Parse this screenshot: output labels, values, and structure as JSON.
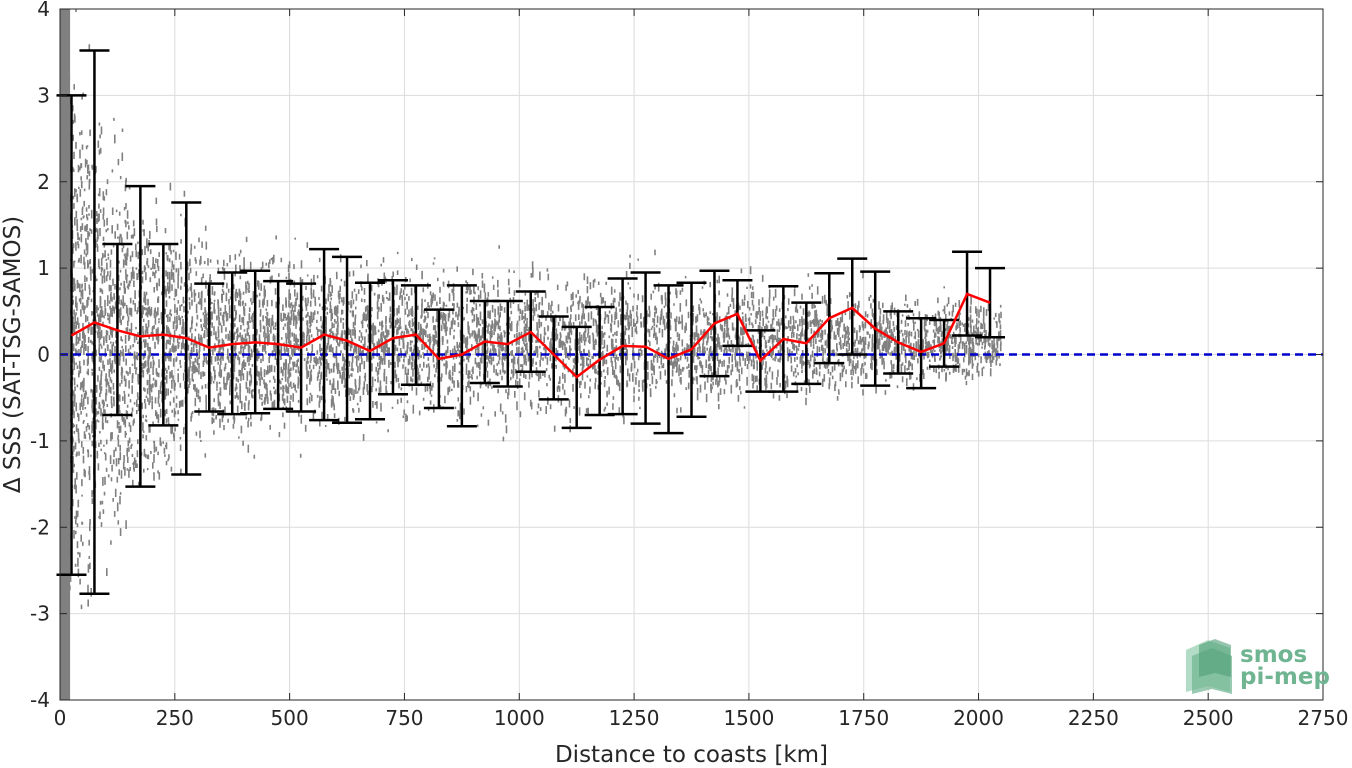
{
  "chart_data": {
    "type": "scatter",
    "title": "",
    "xlabel": "Distance to coasts [km]",
    "ylabel": "Δ SSS (SAT-TSG-SAMOS)",
    "xlim": [
      0,
      2750
    ],
    "ylim": [
      -4,
      4
    ],
    "xticks": [
      0,
      250,
      500,
      750,
      1000,
      1250,
      1500,
      1750,
      2000,
      2250,
      2500,
      2750
    ],
    "yticks": [
      -4,
      -3,
      -2,
      -1,
      0,
      1,
      2,
      3,
      4
    ],
    "grid": true,
    "reference_line": {
      "y": 0,
      "color": "#0000cc",
      "style": "dashed"
    },
    "series": [
      {
        "kind": "binned-mean",
        "color": "#ff0000",
        "x": [
          25,
          75,
          125,
          175,
          225,
          275,
          325,
          375,
          425,
          475,
          525,
          575,
          625,
          675,
          725,
          775,
          825,
          875,
          925,
          975,
          1025,
          1075,
          1125,
          1175,
          1225,
          1275,
          1325,
          1375,
          1425,
          1475,
          1525,
          1575,
          1625,
          1675,
          1725,
          1775,
          1825,
          1875,
          1925,
          1975,
          2025
        ],
        "y": [
          0.22,
          0.37,
          0.28,
          0.21,
          0.23,
          0.19,
          0.08,
          0.12,
          0.14,
          0.12,
          0.08,
          0.23,
          0.16,
          0.04,
          0.19,
          0.23,
          -0.05,
          0.0,
          0.15,
          0.12,
          0.26,
          0.0,
          -0.26,
          -0.06,
          0.1,
          0.09,
          -0.05,
          0.06,
          0.36,
          0.47,
          -0.07,
          0.18,
          0.13,
          0.42,
          0.54,
          0.3,
          0.14,
          0.03,
          0.13,
          0.7,
          0.6
        ]
      },
      {
        "kind": "error-bars",
        "color": "#000000",
        "x": [
          25,
          75,
          125,
          175,
          225,
          275,
          325,
          375,
          425,
          475,
          525,
          575,
          625,
          675,
          725,
          775,
          825,
          875,
          925,
          975,
          1025,
          1075,
          1125,
          1175,
          1225,
          1275,
          1325,
          1375,
          1425,
          1475,
          1525,
          1575,
          1625,
          1675,
          1725,
          1775,
          1825,
          1875,
          1925,
          1975,
          2025
        ],
        "upper": [
          3.0,
          3.52,
          1.28,
          1.95,
          1.28,
          1.76,
          0.82,
          0.95,
          0.97,
          0.85,
          0.82,
          1.22,
          1.13,
          0.83,
          0.86,
          0.8,
          0.52,
          0.8,
          0.62,
          0.62,
          0.73,
          0.44,
          0.32,
          0.55,
          0.88,
          0.95,
          0.8,
          0.83,
          0.97,
          0.86,
          0.28,
          0.79,
          0.6,
          0.94,
          1.11,
          0.96,
          0.5,
          0.42,
          0.4,
          1.19,
          1.0
        ],
        "lower": [
          -2.55,
          -2.77,
          -0.7,
          -1.53,
          -0.82,
          -1.39,
          -0.66,
          -0.69,
          -0.68,
          -0.63,
          -0.66,
          -0.76,
          -0.79,
          -0.75,
          -0.46,
          -0.35,
          -0.62,
          -0.83,
          -0.33,
          -0.37,
          -0.2,
          -0.52,
          -0.85,
          -0.7,
          -0.69,
          -0.8,
          -0.91,
          -0.72,
          -0.25,
          0.1,
          -0.43,
          -0.43,
          -0.34,
          -0.1,
          0.0,
          -0.36,
          -0.22,
          -0.39,
          -0.14,
          0.22,
          0.2
        ]
      }
    ],
    "point_cloud": {
      "color": "#808080",
      "description_bins_km": [
        0,
        100,
        200,
        300,
        500,
        800,
        1100,
        1400,
        1700,
        2050
      ],
      "spread": [
        4.0,
        2.8,
        2.0,
        1.4,
        1.1,
        1.0,
        0.95,
        0.85,
        0.7,
        0.5
      ]
    }
  },
  "logo": {
    "line1": "smos",
    "line2": "pi-mep",
    "color": "#6fb592"
  }
}
